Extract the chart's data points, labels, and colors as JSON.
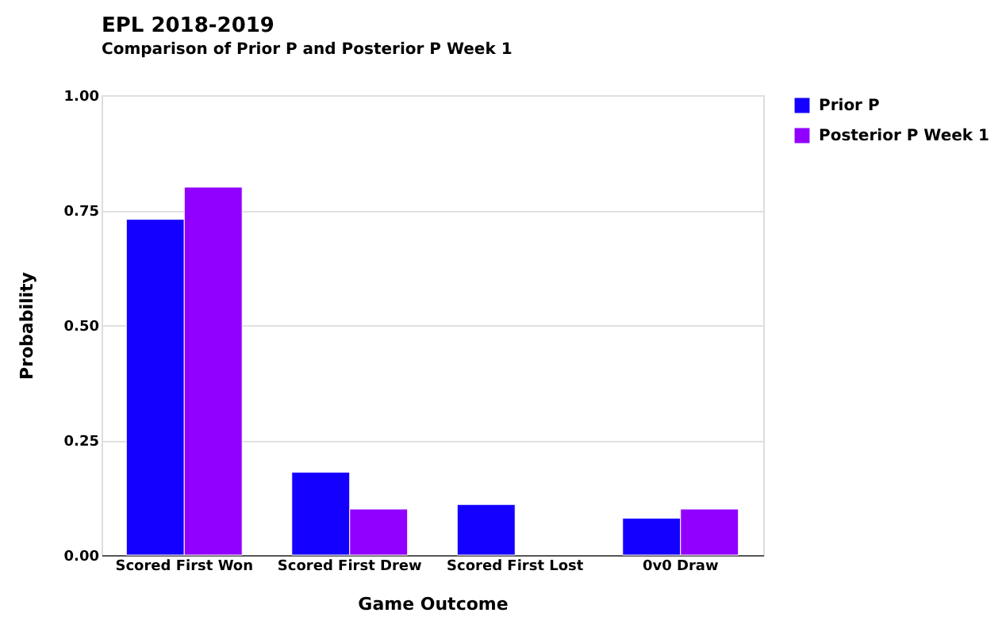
{
  "chart_data": {
    "type": "bar",
    "title": "EPL 2018-2019",
    "subtitle": "Comparison of Prior P and Posterior P Week 1",
    "xlabel": "Game Outcome",
    "ylabel": "Probability",
    "categories": [
      "Scored First Won",
      "Scored First Drew",
      "Scored First Lost",
      "0v0 Draw"
    ],
    "series": [
      {
        "name": "Prior P",
        "color": "#1400ff",
        "values": [
          0.73,
          0.18,
          0.11,
          0.08
        ]
      },
      {
        "name": "Posterior P Week 1",
        "color": "#9100ff",
        "values": [
          0.8,
          0.1,
          null,
          0.1
        ]
      }
    ],
    "ylim": [
      0,
      1
    ],
    "yticks": [
      {
        "value": 0,
        "label": "0.00"
      },
      {
        "value": 0.25,
        "label": "0.25"
      },
      {
        "value": 0.5,
        "label": "0.50"
      },
      {
        "value": 0.75,
        "label": "0.75"
      },
      {
        "value": 1,
        "label": "1.00"
      }
    ],
    "grid": "y",
    "legend": "top right"
  }
}
